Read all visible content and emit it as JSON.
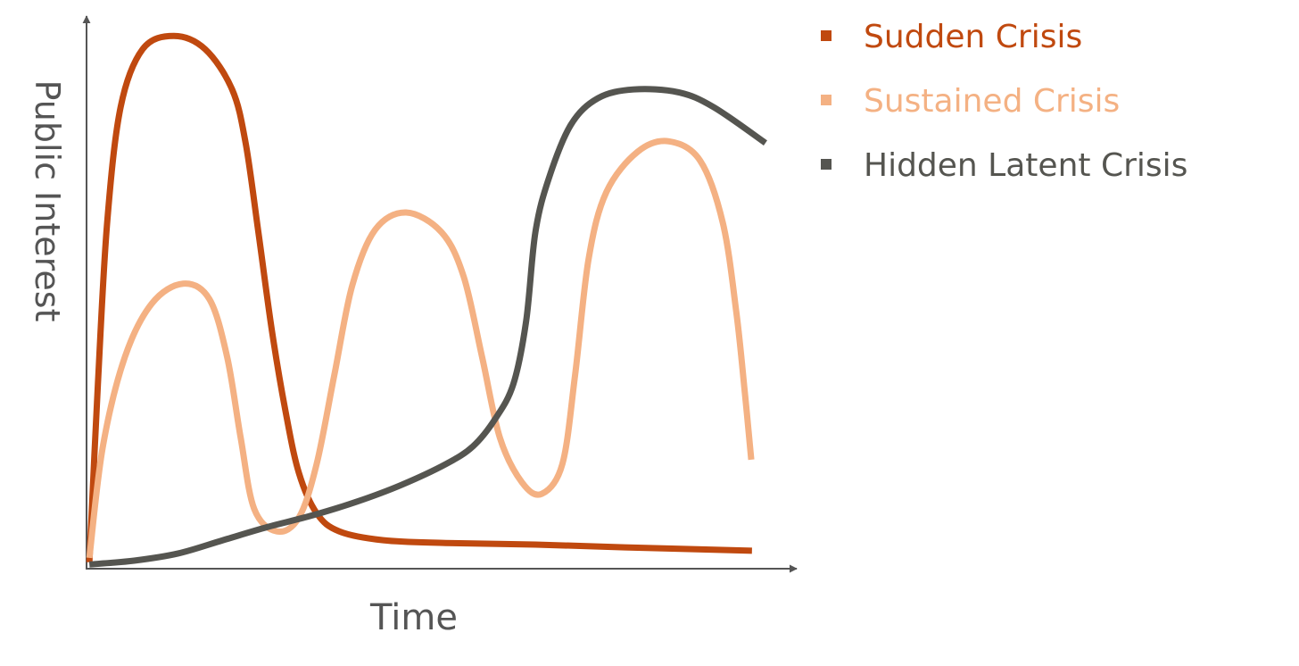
{
  "chart_data": {
    "type": "line",
    "xlabel": "Time",
    "ylabel": "Public Interest",
    "xlim": [
      0,
      100
    ],
    "ylim": [
      0,
      100
    ],
    "series": [
      {
        "name": "Sudden Crisis",
        "color": "#c0490f",
        "x": [
          0.4,
          1.6,
          2.9,
          4.8,
          7.9,
          12.3,
          16.7,
          20.5,
          22.4,
          24.2,
          26.1,
          28.0,
          29.9,
          32.4,
          35.6,
          41.8,
          50.6,
          63.2,
          75.8,
          93.7
        ],
        "values": [
          1.0,
          33.3,
          62.5,
          83.5,
          94.0,
          96.4,
          94.0,
          86.7,
          77.0,
          60.8,
          43.0,
          28.5,
          17.2,
          9.9,
          6.6,
          5.0,
          4.5,
          4.2,
          3.7,
          3.1
        ]
      },
      {
        "name": "Sustained Crisis",
        "color": "#f4b183",
        "x": [
          0.4,
          2.3,
          5.4,
          9.2,
          13.6,
          17.3,
          19.8,
          21.7,
          23.6,
          26.8,
          29.9,
          32.4,
          34.9,
          37.4,
          40.6,
          45.0,
          50.0,
          53.1,
          55.7,
          58.2,
          61.3,
          64.1,
          67.0,
          68.8,
          70.7,
          73.2,
          77.6,
          82.0,
          86.4,
          89.6,
          91.5,
          92.7,
          93.6
        ],
        "values": [
          1.8,
          22.0,
          38.2,
          47.9,
          51.5,
          48.7,
          38.2,
          23.6,
          10.7,
          6.6,
          9.1,
          18.8,
          35.0,
          51.1,
          61.2,
          64.4,
          60.8,
          52.8,
          38.2,
          23.6,
          15.5,
          13.4,
          18.8,
          35.0,
          56.0,
          68.1,
          75.4,
          77.3,
          73.8,
          62.5,
          46.3,
          31.7,
          19.6
        ]
      },
      {
        "name": "Hidden Latent Crisis",
        "color": "#555550",
        "x": [
          0.4,
          6.7,
          12.9,
          19.2,
          25.5,
          31.8,
          38.1,
          44.3,
          50.6,
          54.4,
          57.5,
          60.1,
          61.9,
          63.2,
          65.1,
          68.2,
          72.0,
          77.0,
          83.3,
          88.3,
          95.6
        ],
        "values": [
          0.6,
          1.3,
          2.6,
          5.0,
          7.4,
          9.5,
          12.0,
          15.0,
          18.8,
          22.0,
          26.9,
          33.3,
          44.7,
          60.8,
          70.6,
          80.3,
          85.1,
          86.7,
          86.2,
          83.5,
          77.0
        ]
      }
    ]
  }
}
